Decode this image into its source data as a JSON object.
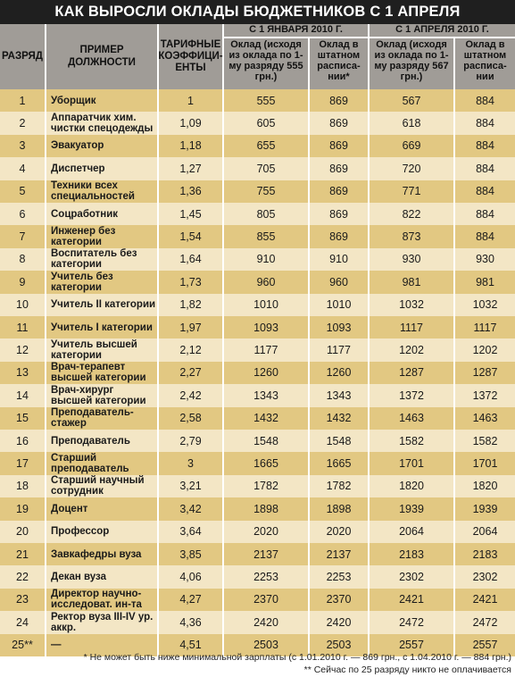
{
  "title": "КАК ВЫРОСЛИ ОКЛАДЫ БЮДЖЕТНИКОВ С 1 АПРЕЛЯ",
  "headers": {
    "grade": "РАЗРЯД",
    "position": "ПРИМЕР ДОЛЖНОСТИ",
    "coef": "ТАРИФНЫЕ КОЭФФИЦИ-ЕНТЫ",
    "jan_group": "С 1 ЯНВАРЯ 2010 Г.",
    "apr_group": "С 1 АПРЕЛЯ 2010 Г.",
    "jan_base": "Оклад (исходя из оклада по 1-му разряду 555 грн.)",
    "jan_staff": "Оклад в штатном расписа-нии*",
    "apr_base": "Оклад (исходя из оклада по 1-му разряду 567 грн.)",
    "apr_staff": "Оклад в штатном расписа-нии"
  },
  "rows": [
    {
      "grade": "1",
      "position": "Уборщик",
      "coef": "1",
      "jan_base": "555",
      "jan_staff": "869",
      "apr_base": "567",
      "apr_staff": "884"
    },
    {
      "grade": "2",
      "position": "Аппаратчик хим. чистки спецодежды",
      "coef": "1,09",
      "jan_base": "605",
      "jan_staff": "869",
      "apr_base": "618",
      "apr_staff": "884"
    },
    {
      "grade": "3",
      "position": "Эвакуатор",
      "coef": "1,18",
      "jan_base": "655",
      "jan_staff": "869",
      "apr_base": "669",
      "apr_staff": "884"
    },
    {
      "grade": "4",
      "position": "Диспетчер",
      "coef": "1,27",
      "jan_base": "705",
      "jan_staff": "869",
      "apr_base": "720",
      "apr_staff": "884"
    },
    {
      "grade": "5",
      "position": "Техники всех специальностей",
      "coef": "1,36",
      "jan_base": "755",
      "jan_staff": "869",
      "apr_base": "771",
      "apr_staff": "884"
    },
    {
      "grade": "6",
      "position": "Соцработник",
      "coef": "1,45",
      "jan_base": "805",
      "jan_staff": "869",
      "apr_base": "822",
      "apr_staff": "884"
    },
    {
      "grade": "7",
      "position": "Инженер без категории",
      "coef": "1,54",
      "jan_base": "855",
      "jan_staff": "869",
      "apr_base": "873",
      "apr_staff": "884"
    },
    {
      "grade": "8",
      "position": "Воспитатель без категории",
      "coef": "1,64",
      "jan_base": "910",
      "jan_staff": "910",
      "apr_base": "930",
      "apr_staff": "930"
    },
    {
      "grade": "9",
      "position": "Учитель без категории",
      "coef": "1,73",
      "jan_base": "960",
      "jan_staff": "960",
      "apr_base": "981",
      "apr_staff": "981"
    },
    {
      "grade": "10",
      "position": "Учитель II категории",
      "coef": "1,82",
      "jan_base": "1010",
      "jan_staff": "1010",
      "apr_base": "1032",
      "apr_staff": "1032"
    },
    {
      "grade": "11",
      "position": "Учитель I категории",
      "coef": "1,97",
      "jan_base": "1093",
      "jan_staff": "1093",
      "apr_base": "1117",
      "apr_staff": "1117"
    },
    {
      "grade": "12",
      "position": "Учитель высшей категории",
      "coef": "2,12",
      "jan_base": "1177",
      "jan_staff": "1177",
      "apr_base": "1202",
      "apr_staff": "1202"
    },
    {
      "grade": "13",
      "position": "Врач-терапевт высшей категории",
      "coef": "2,27",
      "jan_base": "1260",
      "jan_staff": "1260",
      "apr_base": "1287",
      "apr_staff": "1287"
    },
    {
      "grade": "14",
      "position": "Врач-хирург высшей категории",
      "coef": "2,42",
      "jan_base": "1343",
      "jan_staff": "1343",
      "apr_base": "1372",
      "apr_staff": "1372"
    },
    {
      "grade": "15",
      "position": "Преподаватель-стажер",
      "coef": "2,58",
      "jan_base": "1432",
      "jan_staff": "1432",
      "apr_base": "1463",
      "apr_staff": "1463"
    },
    {
      "grade": "16",
      "position": "Преподаватель",
      "coef": "2,79",
      "jan_base": "1548",
      "jan_staff": "1548",
      "apr_base": "1582",
      "apr_staff": "1582"
    },
    {
      "grade": "17",
      "position": "Старший преподаватель",
      "coef": "3",
      "jan_base": "1665",
      "jan_staff": "1665",
      "apr_base": "1701",
      "apr_staff": "1701"
    },
    {
      "grade": "18",
      "position": "Старший научный сотрудник",
      "coef": "3,21",
      "jan_base": "1782",
      "jan_staff": "1782",
      "apr_base": "1820",
      "apr_staff": "1820"
    },
    {
      "grade": "19",
      "position": "Доцент",
      "coef": "3,42",
      "jan_base": "1898",
      "jan_staff": "1898",
      "apr_base": "1939",
      "apr_staff": "1939"
    },
    {
      "grade": "20",
      "position": "Профессор",
      "coef": "3,64",
      "jan_base": "2020",
      "jan_staff": "2020",
      "apr_base": "2064",
      "apr_staff": "2064"
    },
    {
      "grade": "21",
      "position": "Завкафедры вуза",
      "coef": "3,85",
      "jan_base": "2137",
      "jan_staff": "2137",
      "apr_base": "2183",
      "apr_staff": "2183"
    },
    {
      "grade": "22",
      "position": "Декан вуза",
      "coef": "4,06",
      "jan_base": "2253",
      "jan_staff": "2253",
      "apr_base": "2302",
      "apr_staff": "2302"
    },
    {
      "grade": "23",
      "position": "Директор научно-исследоват. ин-та",
      "coef": "4,27",
      "jan_base": "2370",
      "jan_staff": "2370",
      "apr_base": "2421",
      "apr_staff": "2421"
    },
    {
      "grade": "24",
      "position": "Ректор вуза III-IV ур. аккр.",
      "coef": "4,36",
      "jan_base": "2420",
      "jan_staff": "2420",
      "apr_base": "2472",
      "apr_staff": "2472"
    },
    {
      "grade": "25**",
      "position": "—",
      "coef": "4,51",
      "jan_base": "2503",
      "jan_staff": "2503",
      "apr_base": "2557",
      "apr_staff": "2557"
    }
  ],
  "footnotes": [
    "* Не может быть ниже минимальной зарплаты (с 1.01.2010 г. — 869 грн., с 1.04.2010 г. — 884 грн.)",
    "** Сейчас по 25 разряду никто не оплачивается"
  ]
}
